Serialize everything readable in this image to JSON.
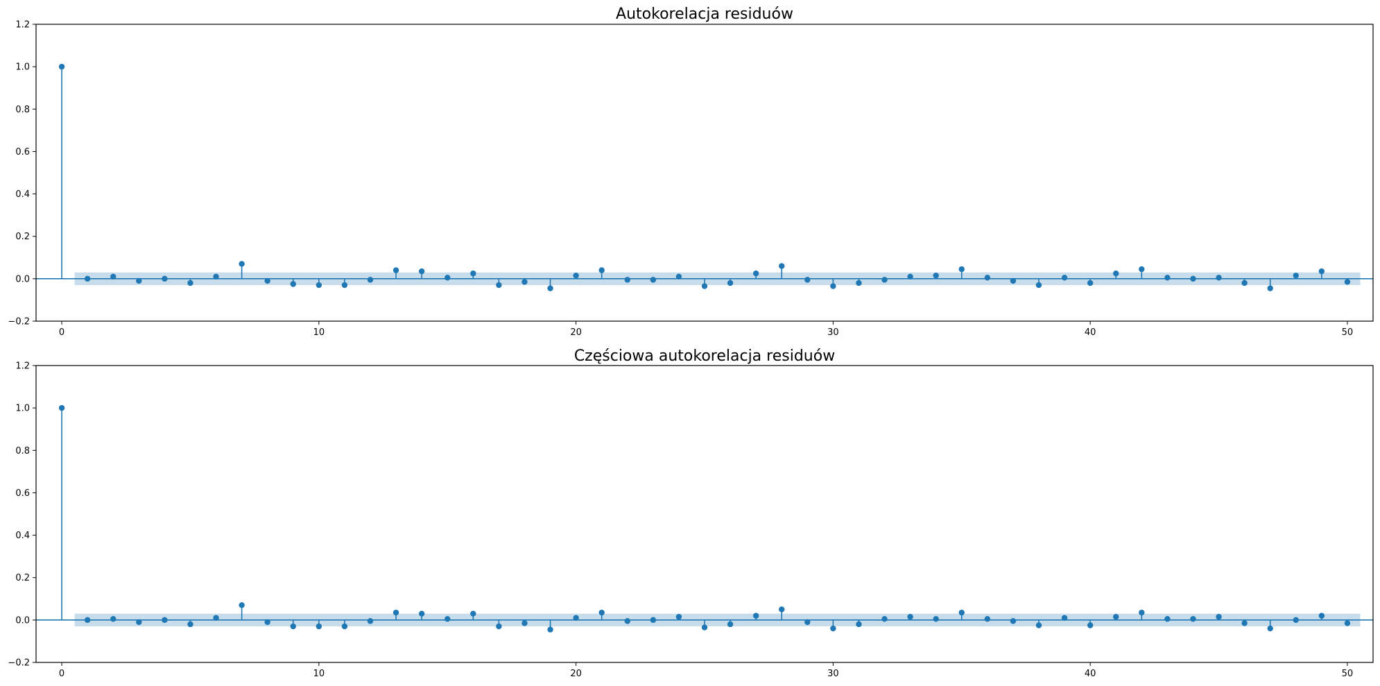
{
  "colors": {
    "series": "#1f77b4",
    "band_opacity": 0.25
  },
  "chart_data": [
    {
      "type": "stem",
      "title": "Autokorelacja residuów",
      "xlim": [
        -1,
        51
      ],
      "ylim": [
        -0.2,
        1.2
      ],
      "xticks": [
        0,
        10,
        20,
        30,
        40,
        50
      ],
      "yticks": [
        -0.2,
        0.0,
        0.2,
        0.4,
        0.6,
        0.8,
        1.0,
        1.2
      ],
      "ytick_labels": [
        "−0.2",
        "0.0",
        "0.2",
        "0.4",
        "0.6",
        "0.8",
        "1.0",
        "1.2"
      ],
      "lags": [
        0,
        1,
        2,
        3,
        4,
        5,
        6,
        7,
        8,
        9,
        10,
        11,
        12,
        13,
        14,
        15,
        16,
        17,
        18,
        19,
        20,
        21,
        22,
        23,
        24,
        25,
        26,
        27,
        28,
        29,
        30,
        31,
        32,
        33,
        34,
        35,
        36,
        37,
        38,
        39,
        40,
        41,
        42,
        43,
        44,
        45,
        46,
        47,
        48,
        49,
        50
      ],
      "values": [
        1.0,
        0.0,
        0.01,
        -0.01,
        0.0,
        -0.02,
        0.01,
        0.07,
        -0.01,
        -0.025,
        -0.03,
        -0.03,
        -0.005,
        0.04,
        0.035,
        0.005,
        0.025,
        -0.03,
        -0.015,
        -0.045,
        0.015,
        0.04,
        -0.005,
        -0.005,
        0.01,
        -0.035,
        -0.02,
        0.025,
        0.06,
        -0.005,
        -0.035,
        -0.02,
        -0.005,
        0.01,
        0.015,
        0.045,
        0.005,
        -0.01,
        -0.03,
        0.005,
        -0.02,
        0.025,
        0.045,
        0.005,
        0.0,
        0.005,
        -0.02,
        -0.045,
        0.015,
        0.035,
        -0.015
      ],
      "confidence_band": {
        "x": [
          0.5,
          50.5
        ],
        "y": [
          -0.03,
          0.03
        ]
      }
    },
    {
      "type": "stem",
      "title": "Częściowa autokorelacja residuów",
      "xlim": [
        -1,
        51
      ],
      "ylim": [
        -0.2,
        1.2
      ],
      "xticks": [
        0,
        10,
        20,
        30,
        40,
        50
      ],
      "yticks": [
        -0.2,
        0.0,
        0.2,
        0.4,
        0.6,
        0.8,
        1.0,
        1.2
      ],
      "ytick_labels": [
        "−0.2",
        "0.0",
        "0.2",
        "0.4",
        "0.6",
        "0.8",
        "1.0",
        "1.2"
      ],
      "lags": [
        0,
        1,
        2,
        3,
        4,
        5,
        6,
        7,
        8,
        9,
        10,
        11,
        12,
        13,
        14,
        15,
        16,
        17,
        18,
        19,
        20,
        21,
        22,
        23,
        24,
        25,
        26,
        27,
        28,
        29,
        30,
        31,
        32,
        33,
        34,
        35,
        36,
        37,
        38,
        39,
        40,
        41,
        42,
        43,
        44,
        45,
        46,
        47,
        48,
        49,
        50
      ],
      "values": [
        1.0,
        0.0,
        0.005,
        -0.01,
        0.0,
        -0.02,
        0.01,
        0.07,
        -0.01,
        -0.03,
        -0.03,
        -0.03,
        -0.005,
        0.035,
        0.03,
        0.005,
        0.03,
        -0.03,
        -0.015,
        -0.045,
        0.01,
        0.035,
        -0.005,
        0.0,
        0.015,
        -0.035,
        -0.02,
        0.02,
        0.05,
        -0.01,
        -0.04,
        -0.02,
        0.005,
        0.015,
        0.005,
        0.035,
        0.005,
        -0.005,
        -0.025,
        0.01,
        -0.025,
        0.015,
        0.035,
        0.005,
        0.005,
        0.015,
        -0.015,
        -0.04,
        0.0,
        0.02,
        -0.015
      ],
      "confidence_band": {
        "x": [
          0.5,
          50.5
        ],
        "y": [
          -0.03,
          0.03
        ]
      }
    }
  ]
}
